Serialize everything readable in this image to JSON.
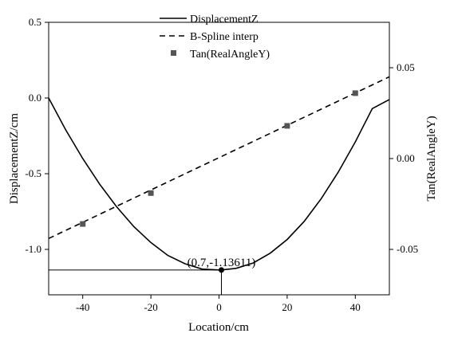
{
  "chart_data": {
    "type": "line",
    "x": {
      "label": "Location/cm",
      "range": [
        -50,
        50
      ],
      "ticks": [
        -40,
        -20,
        0,
        20,
        40
      ],
      "tick_labels": [
        "-40",
        "-20",
        "0",
        "20",
        "40"
      ]
    },
    "y_left": {
      "label": "DisplacementZ/cm",
      "range": [
        -1.3,
        0.5
      ],
      "ticks": [
        0.5,
        0.0,
        -0.5,
        -1.0
      ],
      "tick_labels": [
        "0.5",
        "0.0",
        "-0.5",
        "-1.0"
      ]
    },
    "y_right": {
      "label": "Tan(RealAngleY)",
      "range": [
        -0.075,
        0.075
      ],
      "ticks": [
        0.05,
        0.0,
        -0.05
      ],
      "tick_labels": [
        "0.05",
        "0.00",
        "-0.05"
      ]
    },
    "series": [
      {
        "name": "DisplacementZ",
        "axis": "left",
        "style": "solid",
        "x": [
          -50,
          -45,
          -40,
          -35,
          -30,
          -25,
          -20,
          -15,
          -10,
          -5,
          0,
          0.7,
          5,
          10,
          15,
          20,
          25,
          30,
          35,
          40,
          45,
          50
        ],
        "y": [
          0.0,
          -0.21,
          -0.4,
          -0.57,
          -0.72,
          -0.85,
          -0.955,
          -1.04,
          -1.095,
          -1.13,
          -1.136,
          -1.136,
          -1.125,
          -1.09,
          -1.025,
          -0.935,
          -0.815,
          -0.665,
          -0.49,
          -0.29,
          -0.07,
          -0.01
        ]
      },
      {
        "name": "B-Spline interp",
        "axis": "right",
        "style": "dashed",
        "x": [
          -50,
          50
        ],
        "y": [
          -0.044,
          0.045
        ]
      },
      {
        "name": "Tan(RealAngleY)",
        "axis": "right",
        "style": "markers",
        "x": [
          -40,
          -20,
          20,
          40
        ],
        "y": [
          -0.036,
          -0.019,
          0.018,
          0.036
        ]
      }
    ],
    "annotation": {
      "text": "(0.7,-1.13611)",
      "x": 0.7,
      "y": -1.13611
    },
    "legend_position": "top-center",
    "grid": false
  }
}
